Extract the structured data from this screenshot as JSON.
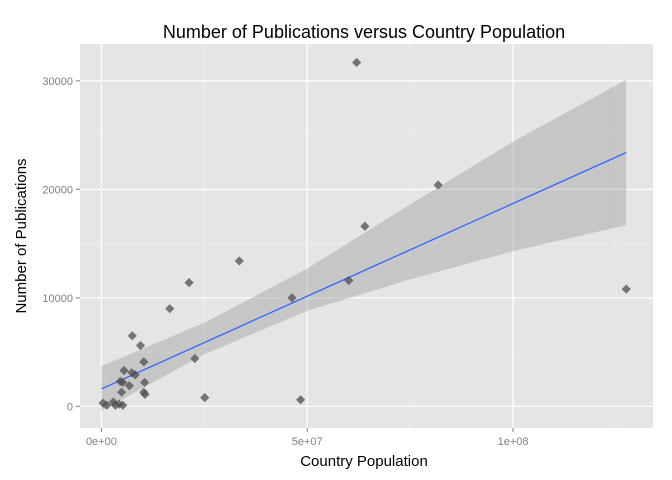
{
  "chart_data": {
    "type": "scatter",
    "title": "Number of Publications versus Country Population",
    "xlabel": "Country Population",
    "ylabel": "Number of Publications",
    "xlim": [
      -5200000,
      134000000
    ],
    "ylim": [
      -2000,
      33400
    ],
    "x_ticks": [
      {
        "value": 0,
        "label": "0e+00"
      },
      {
        "value": 50000000,
        "label": "5e+07"
      },
      {
        "value": 100000000,
        "label": "1e+08"
      }
    ],
    "y_ticks": [
      {
        "value": 0,
        "label": "0"
      },
      {
        "value": 10000,
        "label": "10000"
      },
      {
        "value": 20000,
        "label": "20000"
      },
      {
        "value": 30000,
        "label": "30000"
      }
    ],
    "x_minor": [
      25000000,
      75000000,
      125000000
    ],
    "y_minor": [
      5000,
      15000,
      25000
    ],
    "grid": true,
    "background": "#e5e5e5",
    "grid_color": "#ffffff",
    "point_color": "#4d4d4d",
    "point_shape": "diamond",
    "points": [
      {
        "x": 62000000,
        "y": 31700
      },
      {
        "x": 81800000,
        "y": 20400
      },
      {
        "x": 64000000,
        "y": 16600
      },
      {
        "x": 33500000,
        "y": 13400
      },
      {
        "x": 60100000,
        "y": 11600
      },
      {
        "x": 21300000,
        "y": 11400
      },
      {
        "x": 127500000,
        "y": 10800
      },
      {
        "x": 46300000,
        "y": 10000
      },
      {
        "x": 16600000,
        "y": 9000
      },
      {
        "x": 7500000,
        "y": 6500
      },
      {
        "x": 9500000,
        "y": 5600
      },
      {
        "x": 22700000,
        "y": 4400
      },
      {
        "x": 10300000,
        "y": 4100
      },
      {
        "x": 5500000,
        "y": 3300
      },
      {
        "x": 7400000,
        "y": 3100
      },
      {
        "x": 8200000,
        "y": 2900
      },
      {
        "x": 4600000,
        "y": 2300
      },
      {
        "x": 5200000,
        "y": 2200
      },
      {
        "x": 10500000,
        "y": 2200
      },
      {
        "x": 6800000,
        "y": 1900
      },
      {
        "x": 4900000,
        "y": 1300
      },
      {
        "x": 10300000,
        "y": 1300
      },
      {
        "x": 10600000,
        "y": 1100
      },
      {
        "x": 25100000,
        "y": 800
      },
      {
        "x": 48400000,
        "y": 600
      },
      {
        "x": 2900000,
        "y": 400
      },
      {
        "x": 400000,
        "y": 300
      },
      {
        "x": 4300000,
        "y": 200
      },
      {
        "x": 1300000,
        "y": 100
      },
      {
        "x": 3400000,
        "y": 100
      },
      {
        "x": 5200000,
        "y": 100
      }
    ],
    "trend_line": {
      "color": "#3366ff",
      "x": [
        0,
        127500000
      ],
      "y": [
        1600,
        23400
      ]
    },
    "confidence_band": {
      "color": "#999999",
      "opacity": 0.4,
      "points": [
        {
          "x": 0,
          "lower": -400,
          "upper": 3700
        },
        {
          "x": 25000000,
          "lower": 4800,
          "upper": 7700
        },
        {
          "x": 50000000,
          "lower": 8800,
          "upper": 12700
        },
        {
          "x": 75000000,
          "lower": 11700,
          "upper": 18600
        },
        {
          "x": 100000000,
          "lower": 14300,
          "upper": 24400
        },
        {
          "x": 127500000,
          "lower": 16700,
          "upper": 30100
        }
      ]
    }
  }
}
